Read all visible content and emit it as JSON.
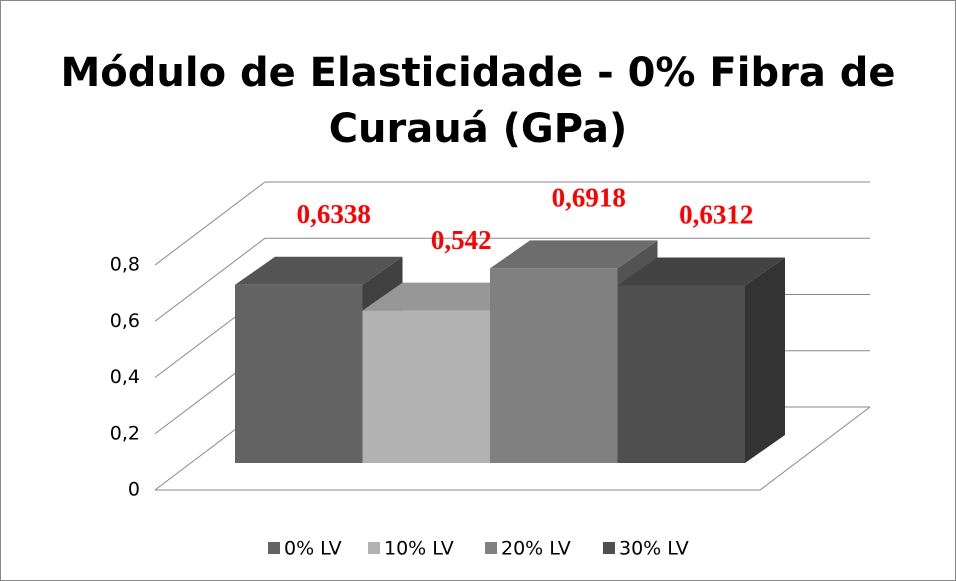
{
  "chart_data": {
    "type": "bar3d",
    "title": "Módulo de Elasticidade - 0% Fibra de Curauá (GPa)",
    "categories": [
      null
    ],
    "series": [
      {
        "name": "0% LV",
        "color": "#636363",
        "values": [
          0.6338
        ],
        "value_labels": [
          "0,6338"
        ]
      },
      {
        "name": "10% LV",
        "color": "#b2b2b2",
        "values": [
          0.542
        ],
        "value_labels": [
          "0,542"
        ]
      },
      {
        "name": "20% LV",
        "color": "#808080",
        "values": [
          0.6918
        ],
        "value_labels": [
          "0,6918"
        ]
      },
      {
        "name": "30% LV",
        "color": "#4f4f4f",
        "values": [
          0.6312
        ],
        "value_labels": [
          "0,6312"
        ]
      }
    ],
    "ylim": [
      0,
      0.8
    ],
    "yticks": [
      0,
      {
        "value": 0.2,
        "label": "0,2"
      },
      {
        "value": 0.4,
        "label": "0,4"
      },
      {
        "value": 0.6,
        "label": "0,6"
      },
      {
        "value": 0.8,
        "label": "0,8"
      }
    ],
    "grid": true,
    "legend": "bottom"
  }
}
